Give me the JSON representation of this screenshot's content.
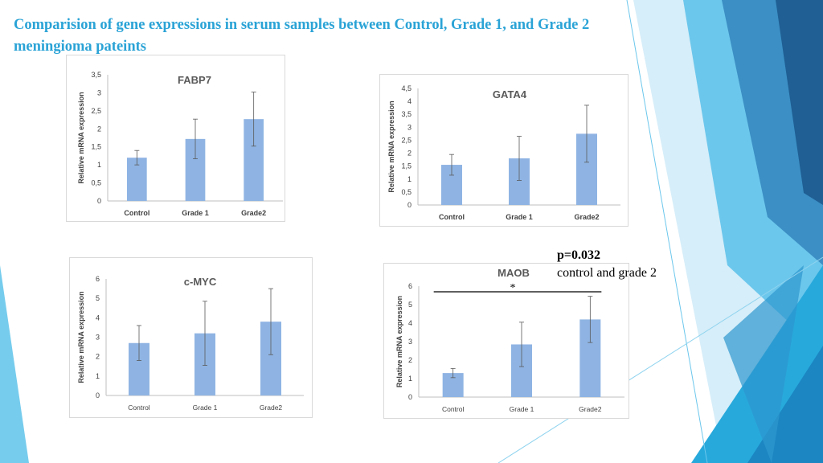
{
  "slide": {
    "title_line1": "Comparision of gene expressions in serum samples between Control, Grade 1, and Grade 2",
    "title_line2": "meningioma pateints",
    "annotation_p": "p=0.032",
    "annotation_comparison": "control and grade 2",
    "significance_marker": "*",
    "accent_color": "#2aa3d6",
    "bar_color": "#8fb4e3"
  },
  "chart_data": [
    {
      "type": "bar",
      "title": "FABP7",
      "ylabel": "Relative mRNA expression",
      "categories": [
        "Control",
        "Grade 1",
        "Grade2"
      ],
      "values": [
        1.2,
        1.72,
        2.27
      ],
      "errors": [
        0.2,
        0.55,
        0.75
      ],
      "ylim": [
        0,
        3.5
      ],
      "yticks": [
        "0",
        "0,5",
        "1",
        "1,5",
        "2",
        "2,5",
        "3",
        "3,5"
      ]
    },
    {
      "type": "bar",
      "title": "GATA4",
      "ylabel": "Relative mRNA expression",
      "categories": [
        "Control",
        "Grade 1",
        "Grade2"
      ],
      "values": [
        1.55,
        1.8,
        2.75
      ],
      "errors": [
        0.4,
        0.85,
        1.1
      ],
      "ylim": [
        0,
        4.5
      ],
      "yticks": [
        "0",
        "0,5",
        "1",
        "1,5",
        "2",
        "2,5",
        "3",
        "3,5",
        "4",
        "4,5"
      ]
    },
    {
      "type": "bar",
      "title": "c-MYC",
      "ylabel": "Relative mRNA expression",
      "categories": [
        "Control",
        "Grade 1",
        "Grade2"
      ],
      "values": [
        2.7,
        3.2,
        3.8
      ],
      "errors": [
        0.9,
        1.65,
        1.7
      ],
      "ylim": [
        0,
        6
      ],
      "yticks": [
        "0",
        "1",
        "2",
        "3",
        "4",
        "5",
        "6"
      ]
    },
    {
      "type": "bar",
      "title": "MAOB",
      "ylabel": "Relative mRNA expression",
      "categories": [
        "Control",
        "Grade 1",
        "Grade2"
      ],
      "values": [
        1.3,
        2.85,
        4.2
      ],
      "errors": [
        0.25,
        1.2,
        1.25
      ],
      "ylim": [
        0,
        6
      ],
      "yticks": [
        "0",
        "1",
        "2",
        "3",
        "4",
        "5",
        "6"
      ]
    }
  ]
}
